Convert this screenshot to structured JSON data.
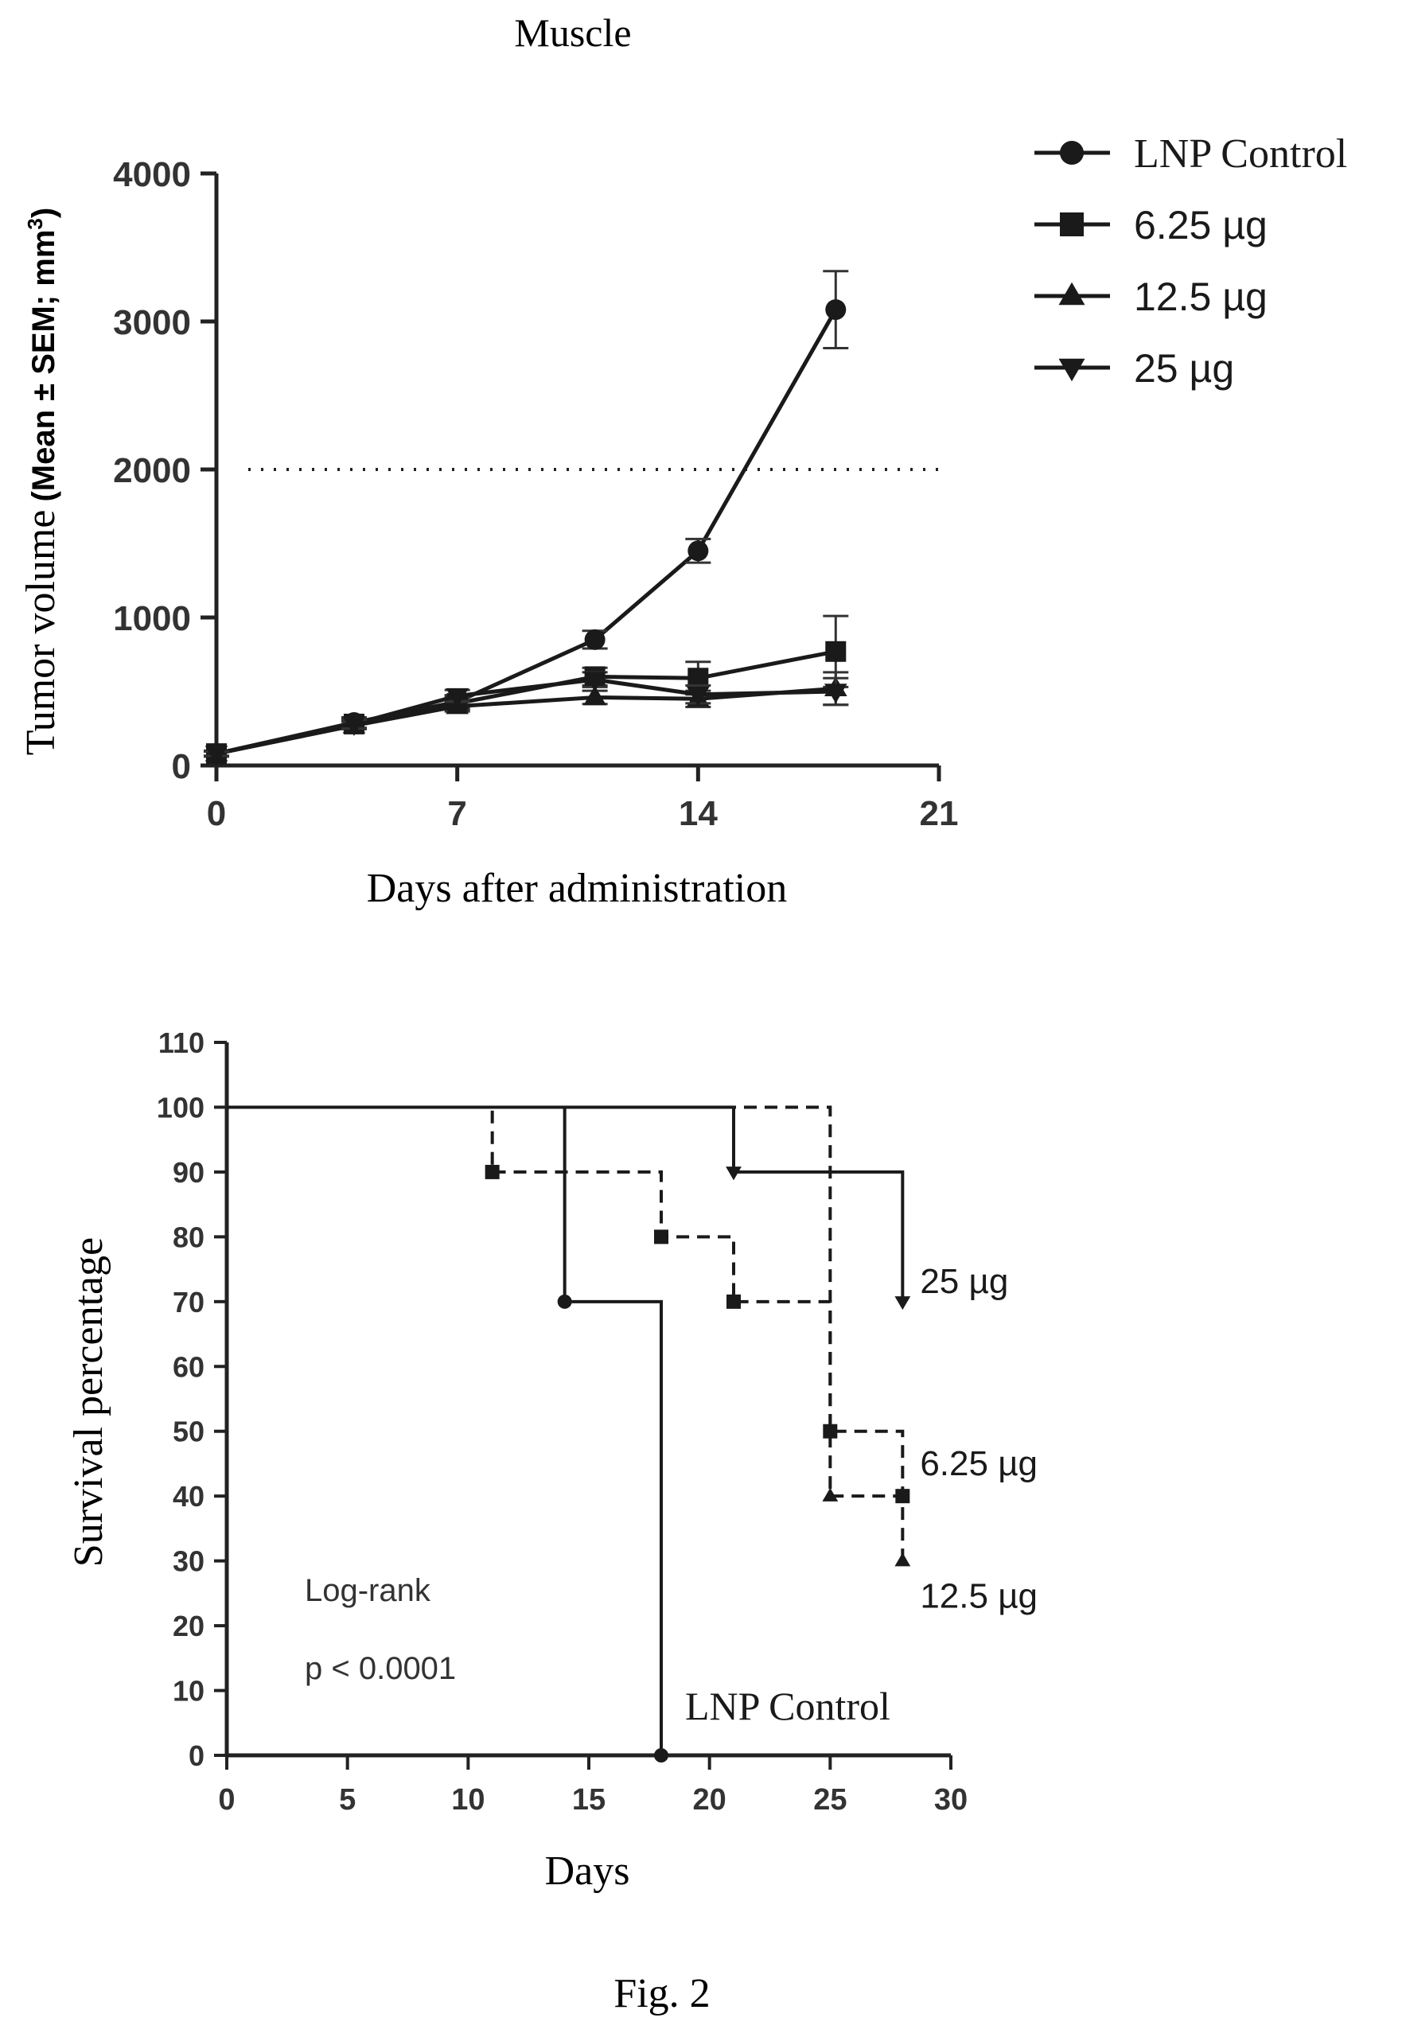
{
  "figure_caption": "Fig. 2",
  "chart_data": [
    {
      "type": "line",
      "title": "Muscle",
      "xlabel": "Days after administration",
      "ylabel": "Tumor volume (Mean ± SEM; mm³)",
      "ylabel_main": "Tumor volume",
      "ylabel_paren": "(Mean ± SEM; mm",
      "ylabel_sup": "3",
      "ylabel_close": ")",
      "xlim": [
        0,
        21
      ],
      "ylim": [
        0,
        4000
      ],
      "xticks": [
        "0",
        "7",
        "14",
        "21"
      ],
      "yticks": [
        "0",
        "1000",
        "2000",
        "3000",
        "4000"
      ],
      "threshold_line": 2000,
      "legend_position": "top-right",
      "series": [
        {
          "name": "LNP Control",
          "marker": "circle",
          "x": [
            0,
            4,
            7,
            11,
            14,
            18
          ],
          "y": [
            80,
            290,
            430,
            850,
            1450,
            3080
          ],
          "sem": [
            20,
            35,
            45,
            60,
            80,
            260
          ]
        },
        {
          "name": "6.25 µg",
          "marker": "square",
          "x": [
            0,
            4,
            7,
            11,
            14,
            18
          ],
          "y": [
            80,
            280,
            420,
            600,
            590,
            770
          ],
          "sem": [
            15,
            30,
            45,
            60,
            110,
            240
          ]
        },
        {
          "name": "12.5 µg",
          "marker": "triangle-up",
          "x": [
            0,
            4,
            7,
            11,
            14,
            18
          ],
          "y": [
            80,
            270,
            400,
            460,
            450,
            520
          ],
          "sem": [
            15,
            25,
            35,
            45,
            55,
            110
          ]
        },
        {
          "name": "25 µg",
          "marker": "triangle-down",
          "x": [
            0,
            4,
            7,
            11,
            14,
            18
          ],
          "y": [
            80,
            280,
            470,
            580,
            480,
            500
          ],
          "sem": [
            15,
            30,
            40,
            50,
            60,
            90
          ]
        }
      ]
    },
    {
      "type": "line",
      "subtype": "kaplan-meier",
      "xlabel": "Days",
      "ylabel": "Survival percentage",
      "xlim": [
        0,
        30
      ],
      "ylim": [
        0,
        110
      ],
      "xticks": [
        "0",
        "5",
        "10",
        "15",
        "20",
        "25",
        "30"
      ],
      "yticks": [
        "0",
        "10",
        "20",
        "30",
        "40",
        "50",
        "60",
        "70",
        "80",
        "90",
        "100",
        "110"
      ],
      "annotation_line1": "Log-rank",
      "annotation_line2": "p < 0.0001",
      "series": [
        {
          "name": "LNP Control",
          "line": "solid",
          "marker": "circle",
          "x": [
            0,
            14,
            18
          ],
          "y": [
            100,
            70,
            0
          ]
        },
        {
          "name": "6.25 µg",
          "line": "dashed",
          "marker": "square",
          "x": [
            0,
            11,
            18,
            21,
            25,
            28
          ],
          "y": [
            100,
            90,
            80,
            70,
            50,
            40
          ]
        },
        {
          "name": "12.5 µg",
          "line": "dashed",
          "marker": "triangle-up",
          "x": [
            0,
            25,
            28
          ],
          "y": [
            100,
            40,
            30
          ]
        },
        {
          "name": "25 µg",
          "line": "solid",
          "marker": "triangle-down",
          "x": [
            0,
            21,
            28
          ],
          "y": [
            100,
            90,
            70
          ]
        }
      ]
    }
  ]
}
